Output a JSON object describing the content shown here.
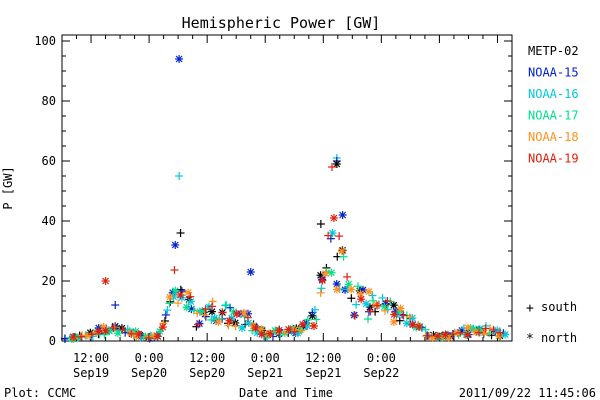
{
  "chart_data": {
    "type": "scatter",
    "title": "Hemispheric Power [GW]",
    "ylabel": "P [GW]",
    "xlabel": "Date and Time",
    "ylim": [
      0,
      102
    ],
    "yticks": [
      0,
      20,
      40,
      60,
      80,
      100
    ],
    "xlim_hours": [
      -6,
      87
    ],
    "xticks": [
      {
        "hour": 0,
        "time": "12:00",
        "date": "Sep19"
      },
      {
        "hour": 12,
        "time": "0:00",
        "date": "Sep20"
      },
      {
        "hour": 24,
        "time": "12:00",
        "date": "Sep20"
      },
      {
        "hour": 36,
        "time": "0:00",
        "date": "Sep21"
      },
      {
        "hour": 48,
        "time": "12:00",
        "date": "Sep21"
      },
      {
        "hour": 60,
        "time": "0:00",
        "date": "Sep22"
      }
    ],
    "x_time_origin": "2011-09-19 12:00",
    "footer_left": "Plot: CCMC",
    "footer_right": "2011/09/22 11:45:06",
    "marker_legend": {
      "south": "south",
      "north": "north"
    },
    "series": [
      {
        "name": "METP-02",
        "color": "#000000"
      },
      {
        "name": "NOAA-15",
        "color": "#0022cc"
      },
      {
        "name": "NOAA-16",
        "color": "#00c8e0"
      },
      {
        "name": "NOAA-17",
        "color": "#00e08a"
      },
      {
        "name": "NOAA-18",
        "color": "#ff9020"
      },
      {
        "name": "NOAA-19",
        "color": "#e02010"
      }
    ],
    "highlight_points": [
      {
        "series": "NOAA-15",
        "hemisphere": "north",
        "hour": 18.2,
        "value": 94
      },
      {
        "series": "NOAA-16",
        "hemisphere": "south",
        "hour": 18.2,
        "value": 55
      },
      {
        "series": "NOAA-16",
        "hemisphere": "south",
        "hour": 50.8,
        "value": 61
      },
      {
        "series": "NOAA-15",
        "hemisphere": "south",
        "hour": 50.8,
        "value": 60
      },
      {
        "series": "METP-02",
        "hemisphere": "north",
        "hour": 50.8,
        "value": 59
      },
      {
        "series": "NOAA-19",
        "hemisphere": "south",
        "hour": 49.8,
        "value": 58
      },
      {
        "series": "NOAA-15",
        "hemisphere": "north",
        "hour": 52.0,
        "value": 42
      },
      {
        "series": "NOAA-19",
        "hemisphere": "north",
        "hour": 50.2,
        "value": 41
      },
      {
        "series": "METP-02",
        "hemisphere": "south",
        "hour": 47.5,
        "value": 39
      },
      {
        "series": "METP-02",
        "hemisphere": "south",
        "hour": 18.5,
        "value": 36
      },
      {
        "series": "NOAA-15",
        "hemisphere": "north",
        "hour": 17.4,
        "value": 32
      },
      {
        "series": "NOAA-15",
        "hemisphere": "north",
        "hour": 33.0,
        "value": 23
      },
      {
        "series": "NOAA-19",
        "hemisphere": "north",
        "hour": 3.0,
        "value": 20
      },
      {
        "series": "NOAA-15",
        "hemisphere": "south",
        "hour": 5.0,
        "value": 12
      }
    ]
  }
}
